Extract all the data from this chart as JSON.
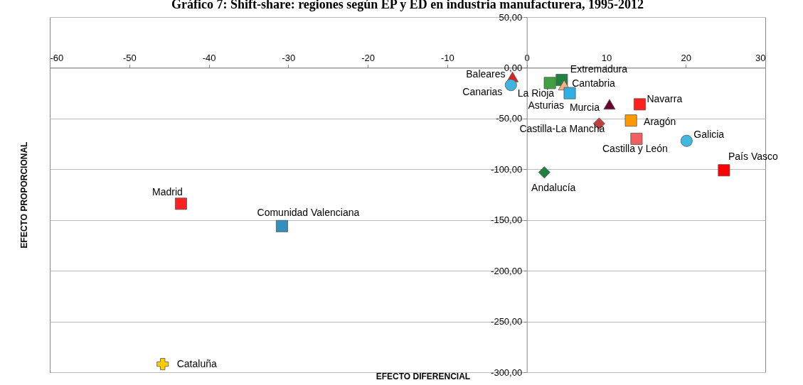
{
  "chart_data": {
    "type": "scatter",
    "title": "Gráfico 7: Shift-share: regiones según EP y ED en industria manufacturera, 1995-2012",
    "xlabel": "EFECTO  DIFERENCIAL",
    "ylabel": "EFECTO PROPORCIONAL",
    "xlim": [
      -60,
      30
    ],
    "xticks": [
      -60,
      -50,
      -40,
      -30,
      -20,
      -10,
      0,
      10,
      20,
      30
    ],
    "ylim": [
      -300,
      50
    ],
    "yticks": [
      {
        "value": 50,
        "label": "50,00"
      },
      {
        "value": 0,
        "label": "0,00"
      },
      {
        "value": -50,
        "label": "-50,00"
      },
      {
        "value": -100,
        "label": "-100,00"
      },
      {
        "value": -150,
        "label": "-150,00"
      },
      {
        "value": -200,
        "label": "-200,00"
      },
      {
        "value": -250,
        "label": "-250,00"
      },
      {
        "value": -300,
        "label": "-300,00"
      }
    ],
    "grid": "y",
    "series": [
      {
        "name": "Baleares",
        "color": "#e02020",
        "marker": "triangle",
        "x": [
          -1.8
        ],
        "values": [
          -9
        ]
      },
      {
        "name": "Canarias",
        "color": "#40b4e0",
        "marker": "circle",
        "x": [
          -2.0
        ],
        "values": [
          -17
        ]
      },
      {
        "name": "La Rioja",
        "color": "#40a040",
        "marker": "square",
        "x": [
          2.9
        ],
        "values": [
          -15
        ]
      },
      {
        "name": "Extremadura",
        "color": "#208040",
        "marker": "square",
        "x": [
          4.4
        ],
        "values": [
          -12
        ]
      },
      {
        "name": "Cantabria",
        "color": "#f4b183",
        "marker": "triangle",
        "x": [
          4.7
        ],
        "values": [
          -17
        ]
      },
      {
        "name": "Asturias",
        "color": "#30b0e0",
        "marker": "square",
        "x": [
          5.4
        ],
        "values": [
          -25
        ]
      },
      {
        "name": "Murcia",
        "color": "#6a0030",
        "marker": "triangle",
        "x": [
          10.4
        ],
        "values": [
          -36
        ]
      },
      {
        "name": "Navarra",
        "color": "#ff2020",
        "marker": "square",
        "x": [
          14.2
        ],
        "values": [
          -36
        ]
      },
      {
        "name": "Aragón",
        "color": "#ff9900",
        "marker": "square",
        "x": [
          13.1
        ],
        "values": [
          -52
        ]
      },
      {
        "name": "Castilla-La Mancha",
        "color": "#c04040",
        "marker": "diamond",
        "x": [
          9.1
        ],
        "values": [
          -55
        ]
      },
      {
        "name": "Castilla y León",
        "color": "#f06060",
        "marker": "square",
        "x": [
          13.8
        ],
        "values": [
          -70
        ]
      },
      {
        "name": "Galicia",
        "color": "#40b8e0",
        "marker": "circle",
        "x": [
          20.1
        ],
        "values": [
          -72
        ]
      },
      {
        "name": "País Vasco",
        "color": "#ff0000",
        "marker": "square",
        "x": [
          24.8
        ],
        "values": [
          -101
        ]
      },
      {
        "name": "Andalucía",
        "color": "#208040",
        "marker": "diamond",
        "x": [
          2.2
        ],
        "values": [
          -103
        ]
      },
      {
        "name": "Madrid",
        "color": "#ff2020",
        "marker": "square",
        "x": [
          -43.5
        ],
        "values": [
          -134
        ]
      },
      {
        "name": "Comunidad Valenciana",
        "color": "#3090c0",
        "marker": "square",
        "x": [
          -30.8
        ],
        "values": [
          -156
        ]
      },
      {
        "name": "Cataluña",
        "color": "#ffcc00",
        "marker": "cross",
        "x": [
          -45.8
        ],
        "values": [
          -292
        ]
      }
    ]
  }
}
